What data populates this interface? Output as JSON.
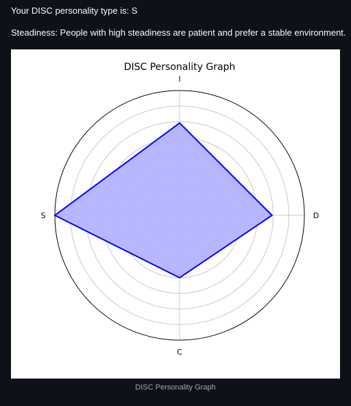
{
  "text": {
    "type_line": "Your DISC personality type is: S",
    "description": "Steadiness: People with high steadiness are patient and prefer a stable environment."
  },
  "caption": "DISC Personality Graph",
  "chart_data": {
    "type": "radar",
    "title": "DISC Personality Graph",
    "categories": [
      "D",
      "I",
      "S",
      "C"
    ],
    "values": [
      0.74,
      0.74,
      1.0,
      0.5
    ],
    "rlim": [
      0,
      1
    ],
    "grid": true,
    "colors": {
      "line": "#0000ff",
      "fill": "#b3b3ff",
      "grid": "#c8c8c8",
      "frame": "#000000"
    }
  }
}
